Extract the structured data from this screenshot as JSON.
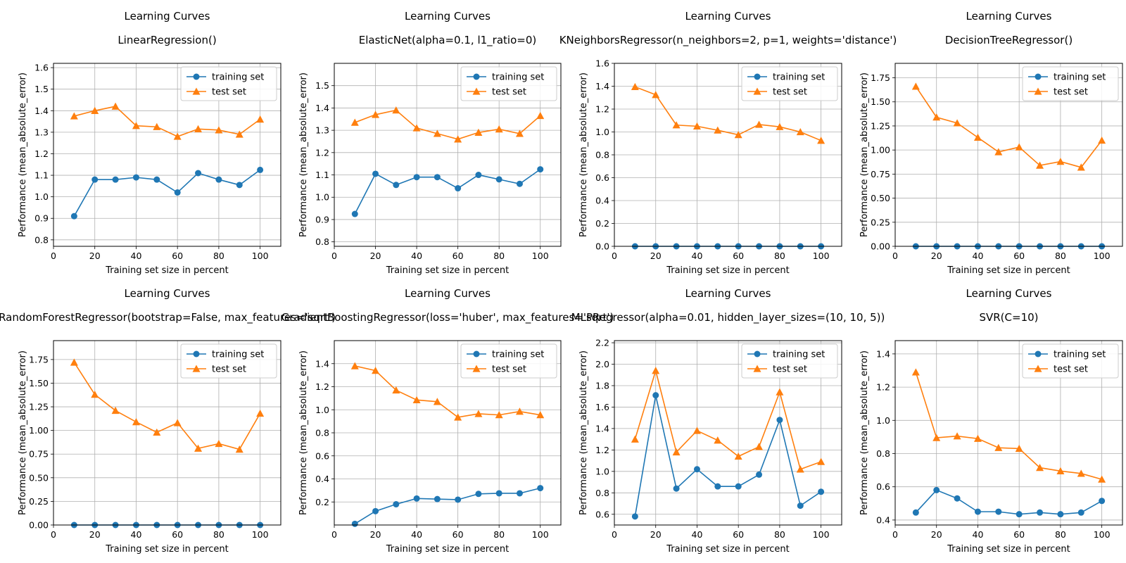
{
  "figure": {
    "colors": {
      "train": "#1f77b4",
      "test": "#ff7f0e",
      "grid": "#b0b0b0"
    }
  },
  "chart_data": [
    {
      "type": "line",
      "title": "Learning Curves",
      "subtitle": "LinearRegression()",
      "xlabel": "Training set size in percent",
      "ylabel": "Performance (mean_absolute_error)",
      "xlim": [
        0,
        110
      ],
      "ylim": [
        0.77,
        1.62
      ],
      "xticks": [
        0,
        20,
        40,
        60,
        80,
        100
      ],
      "yticks": [
        0.8,
        0.9,
        1.0,
        1.1,
        1.2,
        1.3,
        1.4,
        1.5,
        1.6
      ],
      "ytick_labels": [
        "0.8",
        "0.9",
        "1.0",
        "1.1",
        "1.2",
        "1.3",
        "1.4",
        "1.5",
        "1.6"
      ],
      "grid": true,
      "legend": "upper right",
      "x": [
        10,
        20,
        30,
        40,
        50,
        60,
        70,
        80,
        90,
        100
      ],
      "series": [
        {
          "name": "training set",
          "marker": "circle",
          "values": [
            0.91,
            1.08,
            1.08,
            1.09,
            1.08,
            1.02,
            1.11,
            1.08,
            1.055,
            1.125
          ]
        },
        {
          "name": "test set",
          "marker": "triangle",
          "values": [
            1.375,
            1.4,
            1.42,
            1.33,
            1.325,
            1.28,
            1.315,
            1.31,
            1.29,
            1.36
          ]
        }
      ]
    },
    {
      "type": "line",
      "title": "Learning Curves",
      "subtitle": "ElasticNet(alpha=0.1, l1_ratio=0)",
      "xlabel": "Training set size in percent",
      "ylabel": "Performance (mean_absolute_error)",
      "xlim": [
        0,
        110
      ],
      "ylim": [
        0.78,
        1.6
      ],
      "xticks": [
        0,
        20,
        40,
        60,
        80,
        100
      ],
      "yticks": [
        0.8,
        0.9,
        1.0,
        1.1,
        1.2,
        1.3,
        1.4,
        1.5
      ],
      "ytick_labels": [
        "0.8",
        "0.9",
        "1.0",
        "1.1",
        "1.2",
        "1.3",
        "1.4",
        "1.5"
      ],
      "grid": true,
      "legend": "upper right",
      "x": [
        10,
        20,
        30,
        40,
        50,
        60,
        70,
        80,
        90,
        100
      ],
      "series": [
        {
          "name": "training set",
          "marker": "circle",
          "values": [
            0.925,
            1.105,
            1.055,
            1.09,
            1.09,
            1.04,
            1.1,
            1.08,
            1.06,
            1.125
          ]
        },
        {
          "name": "test set",
          "marker": "triangle",
          "values": [
            1.335,
            1.37,
            1.39,
            1.31,
            1.285,
            1.26,
            1.29,
            1.305,
            1.285,
            1.365
          ]
        }
      ]
    },
    {
      "type": "line",
      "title": "Learning Curves",
      "subtitle": "KNeighborsRegressor(n_neighbors=2, p=1, weights='distance')",
      "xlabel": "Training set size in percent",
      "ylabel": "Performance (mean_absolute_error)",
      "xlim": [
        0,
        110
      ],
      "ylim": [
        0,
        1.6
      ],
      "xticks": [
        0,
        20,
        40,
        60,
        80,
        100
      ],
      "yticks": [
        0,
        0.2,
        0.4,
        0.6,
        0.8,
        1.0,
        1.2,
        1.4,
        1.6
      ],
      "ytick_labels": [
        "0.0",
        "0.2",
        "0.4",
        "0.6",
        "0.8",
        "1.0",
        "1.2",
        "1.4",
        "1.6"
      ],
      "grid": true,
      "legend": "upper right",
      "x": [
        10,
        20,
        30,
        40,
        50,
        60,
        70,
        80,
        90,
        100
      ],
      "series": [
        {
          "name": "training set",
          "marker": "circle",
          "values": [
            0,
            0,
            0,
            0,
            0,
            0,
            0,
            0,
            0,
            0
          ]
        },
        {
          "name": "test set",
          "marker": "triangle",
          "values": [
            1.395,
            1.325,
            1.06,
            1.05,
            1.015,
            0.975,
            1.065,
            1.045,
            1.0,
            0.925
          ]
        }
      ]
    },
    {
      "type": "line",
      "title": "Learning Curves",
      "subtitle": "DecisionTreeRegressor()",
      "xlabel": "Training set size in percent",
      "ylabel": "Performance (mean_absolute_error)",
      "xlim": [
        0,
        110
      ],
      "ylim": [
        0,
        1.9
      ],
      "xticks": [
        0,
        20,
        40,
        60,
        80,
        100
      ],
      "yticks": [
        0,
        0.25,
        0.5,
        0.75,
        1.0,
        1.25,
        1.5,
        1.75
      ],
      "ytick_labels": [
        "0.00",
        "0.25",
        "0.50",
        "0.75",
        "1.00",
        "1.25",
        "1.50",
        "1.75"
      ],
      "grid": true,
      "legend": "upper right",
      "x": [
        10,
        20,
        30,
        40,
        50,
        60,
        70,
        80,
        90,
        100
      ],
      "series": [
        {
          "name": "training set",
          "marker": "circle",
          "values": [
            0,
            0,
            0,
            0,
            0,
            0,
            0,
            0,
            0,
            0
          ]
        },
        {
          "name": "test set",
          "marker": "triangle",
          "values": [
            1.66,
            1.34,
            1.28,
            1.13,
            0.98,
            1.03,
            0.84,
            0.88,
            0.82,
            1.1
          ]
        }
      ]
    },
    {
      "type": "line",
      "title": "Learning Curves",
      "subtitle": "RandomForestRegressor(bootstrap=False, max_features='sqrt')",
      "xlabel": "Training set size in percent",
      "ylabel": "Performance (mean_absolute_error)",
      "xlim": [
        0,
        110
      ],
      "ylim": [
        0,
        1.95
      ],
      "xticks": [
        0,
        20,
        40,
        60,
        80,
        100
      ],
      "yticks": [
        0,
        0.25,
        0.5,
        0.75,
        1.0,
        1.25,
        1.5,
        1.75
      ],
      "ytick_labels": [
        "0.00",
        "0.25",
        "0.50",
        "0.75",
        "1.00",
        "1.25",
        "1.50",
        "1.75"
      ],
      "grid": true,
      "legend": "upper right",
      "x": [
        10,
        20,
        30,
        40,
        50,
        60,
        70,
        80,
        90,
        100
      ],
      "series": [
        {
          "name": "training set",
          "marker": "circle",
          "values": [
            0,
            0,
            0,
            0,
            0,
            0,
            0,
            0,
            0,
            0
          ]
        },
        {
          "name": "test set",
          "marker": "triangle",
          "values": [
            1.72,
            1.38,
            1.21,
            1.09,
            0.98,
            1.08,
            0.81,
            0.86,
            0.8,
            1.18
          ]
        }
      ]
    },
    {
      "type": "line",
      "title": "Learning Curves",
      "subtitle": "GradientBoostingRegressor(loss='huber', max_features='sqrt')",
      "xlabel": "Training set size in percent",
      "ylabel": "Performance (mean_absolute_error)",
      "xlim": [
        0,
        110
      ],
      "ylim": [
        0.0,
        1.6
      ],
      "xticks": [
        0,
        20,
        40,
        60,
        80,
        100
      ],
      "yticks": [
        0.2,
        0.4,
        0.6,
        0.8,
        1.0,
        1.2,
        1.4
      ],
      "ytick_labels": [
        "0.2",
        "0.4",
        "0.6",
        "0.8",
        "1.0",
        "1.2",
        "1.4"
      ],
      "grid": true,
      "legend": "upper right",
      "x": [
        10,
        20,
        30,
        40,
        50,
        60,
        70,
        80,
        90,
        100
      ],
      "series": [
        {
          "name": "training set",
          "marker": "circle",
          "values": [
            0.01,
            0.12,
            0.18,
            0.23,
            0.225,
            0.22,
            0.27,
            0.275,
            0.275,
            0.32
          ]
        },
        {
          "name": "test set",
          "marker": "triangle",
          "values": [
            1.38,
            1.34,
            1.17,
            1.085,
            1.07,
            0.935,
            0.965,
            0.955,
            0.985,
            0.955
          ]
        }
      ]
    },
    {
      "type": "line",
      "title": "Learning Curves",
      "subtitle": "MLPRegressor(alpha=0.01, hidden_layer_sizes=(10, 10, 5))",
      "xlabel": "Training set size in percent",
      "ylabel": "Performance (mean_absolute_error)",
      "xlim": [
        0,
        110
      ],
      "ylim": [
        0.5,
        2.22
      ],
      "xticks": [
        0,
        20,
        40,
        60,
        80,
        100
      ],
      "yticks": [
        0.6,
        0.8,
        1.0,
        1.2,
        1.4,
        1.6,
        1.8,
        2.0,
        2.2
      ],
      "ytick_labels": [
        "0.6",
        "0.8",
        "1.0",
        "1.2",
        "1.4",
        "1.6",
        "1.8",
        "2.0",
        "2.2"
      ],
      "grid": true,
      "legend": "upper right",
      "x": [
        10,
        20,
        30,
        40,
        50,
        60,
        70,
        80,
        90,
        100
      ],
      "series": [
        {
          "name": "training set",
          "marker": "circle",
          "values": [
            0.58,
            1.71,
            0.84,
            1.02,
            0.86,
            0.86,
            0.97,
            1.48,
            0.68,
            0.81
          ]
        },
        {
          "name": "test set",
          "marker": "triangle",
          "values": [
            1.3,
            1.94,
            1.18,
            1.38,
            1.29,
            1.14,
            1.23,
            1.74,
            1.02,
            1.09
          ]
        }
      ]
    },
    {
      "type": "line",
      "title": "Learning Curves",
      "subtitle": "SVR(C=10)",
      "xlabel": "Training set size in percent",
      "ylabel": "Performance (mean_absolute_error)",
      "xlim": [
        0,
        110
      ],
      "ylim": [
        0.37,
        1.48
      ],
      "xticks": [
        0,
        20,
        40,
        60,
        80,
        100
      ],
      "yticks": [
        0.4,
        0.6,
        0.8,
        1.0,
        1.2,
        1.4
      ],
      "ytick_labels": [
        "0.4",
        "0.6",
        "0.8",
        "1.0",
        "1.2",
        "1.4"
      ],
      "grid": true,
      "legend": "upper right",
      "x": [
        10,
        20,
        30,
        40,
        50,
        60,
        70,
        80,
        90,
        100
      ],
      "series": [
        {
          "name": "training set",
          "marker": "circle",
          "values": [
            0.445,
            0.58,
            0.53,
            0.45,
            0.45,
            0.435,
            0.445,
            0.435,
            0.445,
            0.515
          ]
        },
        {
          "name": "test set",
          "marker": "triangle",
          "values": [
            1.29,
            0.895,
            0.905,
            0.89,
            0.835,
            0.83,
            0.715,
            0.695,
            0.68,
            0.645
          ]
        }
      ]
    }
  ]
}
